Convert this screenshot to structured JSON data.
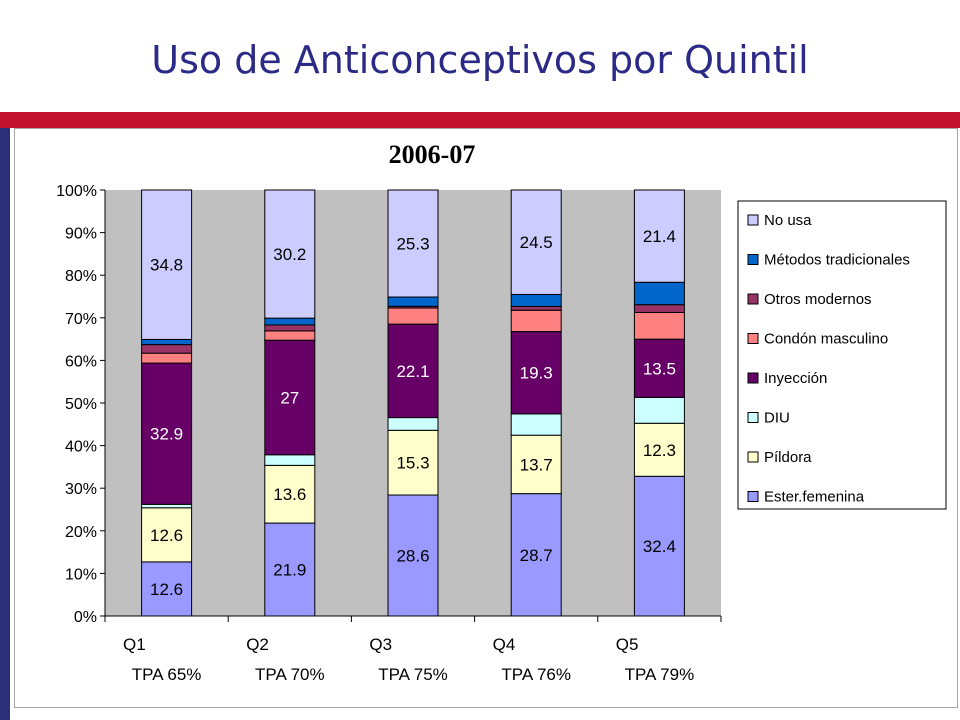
{
  "page": {
    "title": "Uso de Anticonceptivos por Quintil"
  },
  "chart_data": {
    "type": "bar",
    "stacked": true,
    "percent_stacked": true,
    "title": "2006-07",
    "xlabel": "",
    "ylabel": "",
    "ylim": [
      0,
      100
    ],
    "y_ticks": [
      "0%",
      "10%",
      "20%",
      "30%",
      "40%",
      "50%",
      "60%",
      "70%",
      "80%",
      "90%",
      "100%"
    ],
    "grid": false,
    "legend_position": "right",
    "categories": [
      "Q1",
      "Q2",
      "Q3",
      "Q4",
      "Q5"
    ],
    "category_sublabels": [
      "TPA 65%",
      "TPA 70%",
      "TPA 75%",
      "TPA 76%",
      "TPA 79%"
    ],
    "series": [
      {
        "name": "Ester.femenina",
        "color": "#9999ff",
        "label_color": "#000000",
        "values": [
          12.6,
          21.9,
          28.6,
          28.7,
          32.4
        ],
        "labels": [
          "12.6",
          "21.9",
          "28.6",
          "28.7",
          "32.4"
        ]
      },
      {
        "name": "Píldora",
        "color": "#ffffcc",
        "label_color": "#000000",
        "values": [
          12.6,
          13.6,
          15.3,
          13.7,
          12.3
        ],
        "labels": [
          "12.6",
          "13.6",
          "15.3",
          "13.7",
          "12.3"
        ]
      },
      {
        "name": "DIU",
        "color": "#ccffff",
        "label_color": "#000000",
        "values": [
          0.8,
          2.5,
          3.0,
          5.0,
          6.0
        ],
        "labels": [
          "",
          "",
          "",
          "",
          ""
        ]
      },
      {
        "name": "Inyección",
        "color": "#660066",
        "label_color": "#ffffff",
        "values": [
          32.9,
          27,
          22.1,
          19.3,
          13.5
        ],
        "labels": [
          "32.9",
          "27",
          "22.1",
          "19.3",
          "13.5"
        ]
      },
      {
        "name": "Condón masculino",
        "color": "#ff8080",
        "label_color": "#000000",
        "values": [
          2.3,
          2.2,
          3.8,
          5.0,
          6.2
        ],
        "labels": [
          "",
          "",
          "",
          "",
          ""
        ]
      },
      {
        "name": "Otros modernos",
        "color": "#993366",
        "label_color": "#000000",
        "values": [
          2.0,
          1.4,
          0.4,
          0.9,
          1.8
        ],
        "labels": [
          "",
          "",
          "",
          "",
          ""
        ]
      },
      {
        "name": "Métodos tradicionales",
        "color": "#0066cc",
        "label_color": "#000000",
        "values": [
          1.2,
          1.6,
          2.2,
          2.8,
          5.2
        ],
        "labels": [
          "",
          "",
          "",
          "",
          ""
        ]
      },
      {
        "name": "No usa",
        "color": "#ccccff",
        "label_color": "#000000",
        "values": [
          34.8,
          30.2,
          25.3,
          24.5,
          21.4
        ],
        "labels": [
          "34.8",
          "30.2",
          "25.3",
          "24.5",
          "21.4"
        ]
      }
    ],
    "legend_order": [
      "No usa",
      "Métodos tradicionales",
      "Otros modernos",
      "Condón masculino",
      "Inyección",
      "DIU",
      "Píldora",
      "Ester.femenina"
    ]
  }
}
